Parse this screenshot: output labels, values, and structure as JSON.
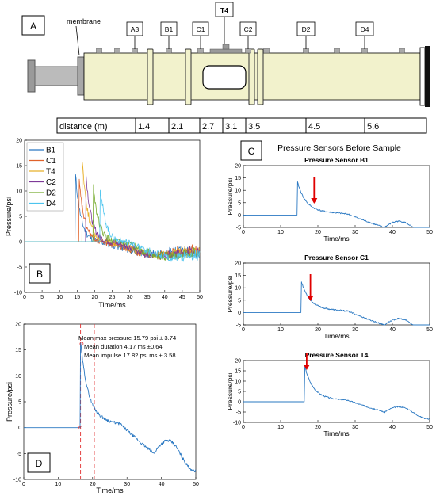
{
  "panel_letters": {
    "a": "A",
    "b": "B",
    "c": "C",
    "d": "D"
  },
  "shock_tube": {
    "membrane_label": "membrane",
    "sensors": [
      "A3",
      "B1",
      "C1",
      "T4",
      "C2",
      "D2",
      "D4"
    ],
    "distance_header": "distance (m)",
    "distances": [
      "1.4",
      "2.1",
      "2.7",
      "3.1",
      "3.5",
      "4.5",
      "5.6"
    ],
    "colors": {
      "tube": "#f2f2cc",
      "window": "#ffffff",
      "collar": "#f2f2cc",
      "end_cap": "#111111",
      "driver": "#bbbbbb"
    }
  },
  "panel_c_title": "Pressure Sensors Before Sample",
  "chart_data": [
    {
      "id": "B",
      "type": "line",
      "xlabel": "Time/ms",
      "ylabel": "Pressure/psi",
      "xlim": [
        0,
        50
      ],
      "ylim": [
        -10,
        20
      ],
      "xticks": [
        0,
        5,
        10,
        15,
        20,
        25,
        30,
        35,
        40,
        45,
        50
      ],
      "yticks": [
        -10,
        -5,
        0,
        5,
        10,
        15,
        20
      ],
      "legend": "top-left",
      "series": [
        {
          "name": "B1",
          "color": "#2a78c2",
          "t0": 14.5,
          "peak": 13.5
        },
        {
          "name": "C1",
          "color": "#e0622a",
          "t0": 15.5,
          "peak": 12.5
        },
        {
          "name": "T4",
          "color": "#e8b02a",
          "t0": 16.5,
          "peak": 16.0
        },
        {
          "name": "C2",
          "color": "#7e3a98",
          "t0": 17.5,
          "peak": 13.5
        },
        {
          "name": "D2",
          "color": "#77ac30",
          "t0": 19.5,
          "peak": 12.0
        },
        {
          "name": "D4",
          "color": "#4cc4ee",
          "t0": 21.5,
          "peak": 11.5
        }
      ]
    },
    {
      "id": "C1",
      "type": "line",
      "title": "Pressure Sensor B1",
      "xlabel": "Time/ms",
      "ylabel": "Pressure/psi",
      "xlim": [
        0,
        50
      ],
      "ylim": [
        -5,
        20
      ],
      "xticks": [
        0,
        10,
        20,
        30,
        40,
        50
      ],
      "yticks": [
        -5,
        0,
        5,
        10,
        15,
        20
      ],
      "t0": 14.5,
      "peak": 13.5,
      "arrow_t": 19,
      "color": "#2a78c2"
    },
    {
      "id": "C2",
      "type": "line",
      "title": "Pressure Sensor C1",
      "xlabel": "Time/ms",
      "ylabel": "Pressure/psi",
      "xlim": [
        0,
        50
      ],
      "ylim": [
        -5,
        20
      ],
      "xticks": [
        0,
        10,
        20,
        30,
        40,
        50
      ],
      "yticks": [
        -5,
        0,
        5,
        10,
        15,
        20
      ],
      "t0": 15.5,
      "peak": 13.0,
      "arrow_t": 18,
      "color": "#2a78c2"
    },
    {
      "id": "C3",
      "type": "line",
      "title": "Pressure Sensor T4",
      "xlabel": "Time/ms",
      "ylabel": "Pressure/psi",
      "xlim": [
        0,
        50
      ],
      "ylim": [
        -10,
        20
      ],
      "xticks": [
        0,
        10,
        20,
        30,
        40,
        50
      ],
      "yticks": [
        -10,
        -5,
        0,
        5,
        10,
        15,
        20
      ],
      "t0": 16.5,
      "peak": 17.0,
      "arrow_t": 17,
      "color": "#2a78c2"
    },
    {
      "id": "D",
      "type": "line",
      "xlabel": "Time/ms",
      "ylabel": "Pressure/psi",
      "xlim": [
        0,
        50
      ],
      "ylim": [
        -10,
        20
      ],
      "xticks": [
        0,
        10,
        20,
        30,
        40,
        50
      ],
      "yticks": [
        -10,
        -5,
        0,
        5,
        10,
        15,
        20
      ],
      "t0": 16.5,
      "peak": 16.5,
      "dashed_lines_t": [
        16.5,
        20.5
      ],
      "color": "#2a78c2",
      "annotations": [
        "Mean max pressure 15.79 psi ± 3.74",
        "Mean duration 4.17 ms ±0.64",
        "Mean impulse 17.82 psi.ms ± 3.58"
      ]
    }
  ]
}
